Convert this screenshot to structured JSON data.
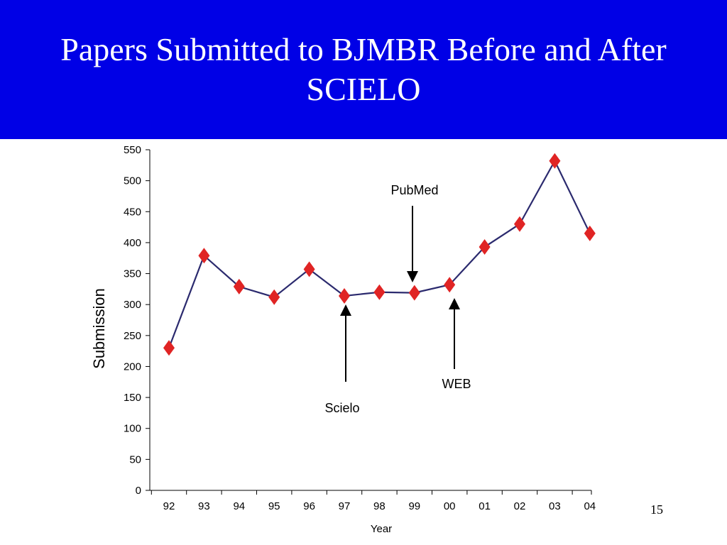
{
  "slide": {
    "title_line1": "Papers Submitted to BJMBR Before and After",
    "title_line2": "SCIELO",
    "page_number": "15",
    "title_band_color": "#0000e6"
  },
  "chart_data": {
    "type": "line",
    "xlabel": "Year",
    "ylabel": "Submission",
    "categories": [
      "92",
      "93",
      "94",
      "95",
      "96",
      "97",
      "98",
      "99",
      "00",
      "01",
      "02",
      "03",
      "04"
    ],
    "values": [
      230,
      379,
      329,
      312,
      357,
      314,
      320,
      319,
      332,
      393,
      430,
      532,
      415
    ],
    "ylim": [
      0,
      550
    ],
    "yticks": [
      0,
      50,
      100,
      150,
      200,
      250,
      300,
      350,
      400,
      450,
      500,
      550
    ],
    "grid": false,
    "line_color": "#2b2a6e",
    "marker_color": "#e02424",
    "marker": "diamond",
    "annotations": [
      {
        "text": "PubMed",
        "category": "99",
        "arrow": "down"
      },
      {
        "text": "Scielo",
        "category": "97",
        "arrow": "up"
      },
      {
        "text": "WEB",
        "category": "00",
        "arrow": "up"
      }
    ]
  }
}
